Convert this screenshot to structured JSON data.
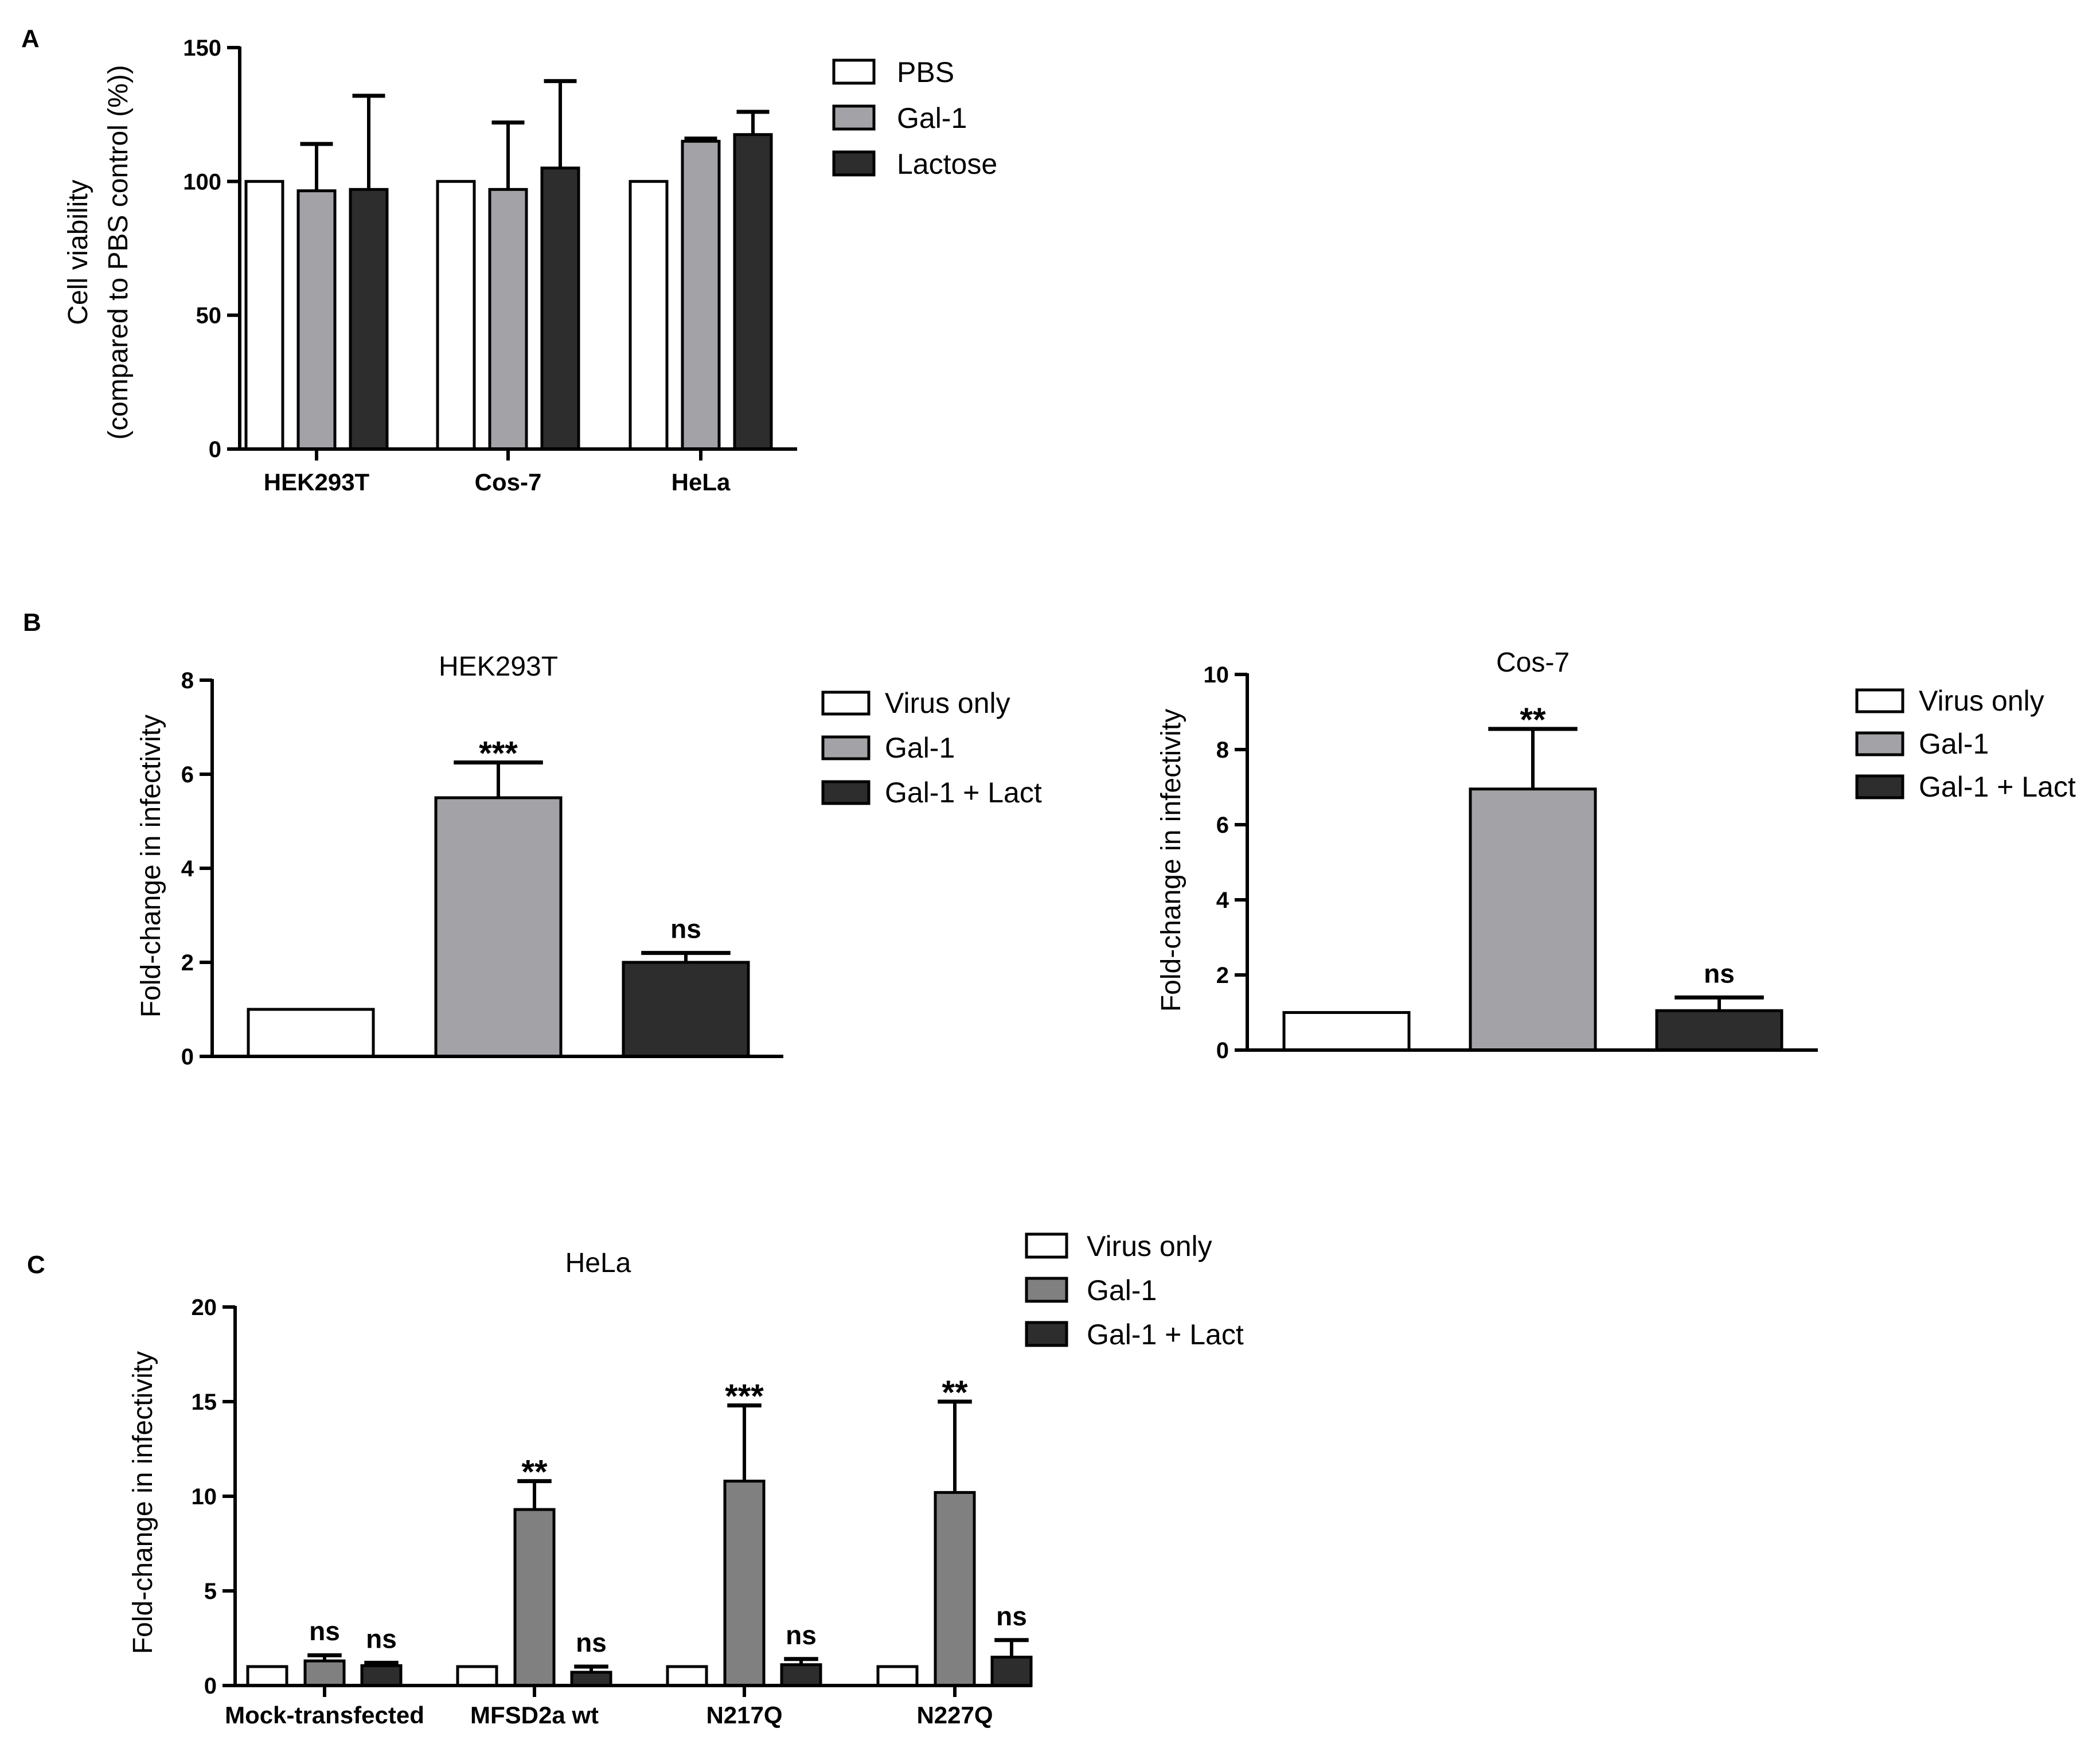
{
  "panel_labels": [
    "A",
    "B",
    "C"
  ],
  "colors": {
    "white": "#ffffff",
    "light_gray": "#a3a2a6",
    "mid_gray": "#808080",
    "dark": "#2d2d2d",
    "axis": "#000000"
  },
  "chart_data": [
    {
      "id": "A",
      "type": "bar",
      "title": "",
      "ylabel": [
        "Cell viability",
        "(compared to PBS control (%))"
      ],
      "xlabel": "",
      "ylim": [
        0,
        150
      ],
      "yticks": [
        0,
        50,
        100,
        150
      ],
      "categories": [
        "HEK293T",
        "Cos-7",
        "HeLa"
      ],
      "series": [
        {
          "name": "PBS",
          "values": [
            100,
            100,
            100
          ],
          "errors": [
            0,
            0,
            0
          ]
        },
        {
          "name": "Gal-1",
          "values": [
            96.5,
            97,
            115
          ],
          "errors": [
            17.5,
            25,
            1
          ]
        },
        {
          "name": "Lactose",
          "values": [
            97,
            105,
            117.5
          ],
          "errors": [
            35,
            32.5,
            8.5
          ]
        }
      ],
      "significance": null,
      "legend_position": "top-right"
    },
    {
      "id": "B1",
      "type": "bar",
      "title": "HEK293T",
      "ylabel": [
        "Fold-change in infectivity"
      ],
      "xlabel": "",
      "ylim": [
        0,
        8
      ],
      "yticks": [
        0,
        2,
        4,
        6,
        8
      ],
      "categories": [
        ""
      ],
      "series": [
        {
          "name": "Virus only",
          "values": [
            1.0
          ],
          "errors": [
            0
          ]
        },
        {
          "name": "Gal-1",
          "values": [
            5.5
          ],
          "errors": [
            0.75
          ]
        },
        {
          "name": "Gal-1 + Lact",
          "values": [
            2.0
          ],
          "errors": [
            0.2
          ]
        }
      ],
      "significance": [
        [
          "",
          "***",
          "ns"
        ]
      ],
      "legend_position": "top-right"
    },
    {
      "id": "B2",
      "type": "bar",
      "title": "Cos-7",
      "ylabel": [
        "Fold-change in infectivity"
      ],
      "xlabel": "",
      "ylim": [
        0,
        10
      ],
      "yticks": [
        0,
        2,
        4,
        6,
        8,
        10
      ],
      "categories": [
        ""
      ],
      "series": [
        {
          "name": "Virus only",
          "values": [
            1.0
          ],
          "errors": [
            0
          ]
        },
        {
          "name": "Gal-1",
          "values": [
            6.95
          ],
          "errors": [
            1.6
          ]
        },
        {
          "name": "Gal-1 + Lact",
          "values": [
            1.05
          ],
          "errors": [
            0.35
          ]
        }
      ],
      "significance": [
        [
          "",
          "**",
          "ns"
        ]
      ],
      "legend_position": "top-right"
    },
    {
      "id": "C",
      "type": "bar",
      "title": "HeLa",
      "ylabel": [
        "Fold-change in infectivity"
      ],
      "xlabel": "",
      "ylim": [
        0,
        20
      ],
      "yticks": [
        0,
        5,
        10,
        15,
        20
      ],
      "categories": [
        "Mock-transfected",
        "MFSD2a wt",
        "N217Q",
        "N227Q"
      ],
      "series": [
        {
          "name": "Virus only",
          "values": [
            1.0,
            1.0,
            1.0,
            1.0
          ],
          "errors": [
            0,
            0,
            0,
            0
          ]
        },
        {
          "name": "Gal-1",
          "values": [
            1.3,
            9.3,
            10.8,
            10.2
          ],
          "errors": [
            0.3,
            1.5,
            4.0,
            4.8
          ]
        },
        {
          "name": "Gal-1 + Lact",
          "values": [
            1.05,
            0.7,
            1.1,
            1.5
          ],
          "errors": [
            0.15,
            0.3,
            0.3,
            0.9
          ]
        }
      ],
      "significance": [
        [
          "",
          "ns",
          "ns"
        ],
        [
          "",
          "**",
          "ns"
        ],
        [
          "",
          "***",
          "ns"
        ],
        [
          "",
          "**",
          "ns"
        ]
      ],
      "legend_position": "top-right"
    }
  ]
}
